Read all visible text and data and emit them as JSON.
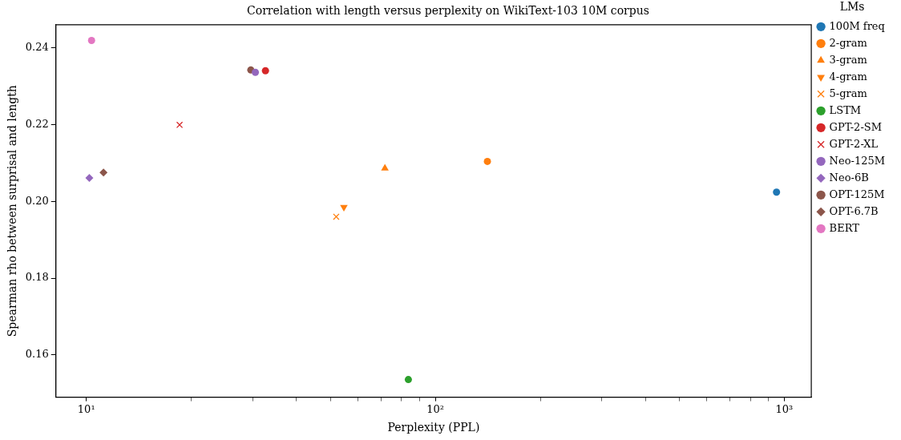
{
  "chart_data": {
    "type": "scatter",
    "title": "Correlation with length versus perplexity on WikiText-103 10M corpus",
    "xlabel": "Perplexity (PPL)",
    "ylabel": "Spearman rho between surprisal and length",
    "legend_title": "LMs",
    "legend": "top right",
    "grid": false,
    "log": "x",
    "xlim": [
      8.18,
      1195
    ],
    "xticks": [
      {
        "value": 10,
        "label": "10¹"
      },
      {
        "value": 20,
        "label": null
      },
      {
        "value": 30,
        "label": null
      },
      {
        "value": 40,
        "label": null
      },
      {
        "value": 50,
        "label": null
      },
      {
        "value": 60,
        "label": null
      },
      {
        "value": 70,
        "label": null
      },
      {
        "value": 80,
        "label": null
      },
      {
        "value": 90,
        "label": null
      },
      {
        "value": 100,
        "label": "10²"
      },
      {
        "value": 200,
        "label": null
      },
      {
        "value": 300,
        "label": null
      },
      {
        "value": 400,
        "label": null
      },
      {
        "value": 500,
        "label": null
      },
      {
        "value": 600,
        "label": null
      },
      {
        "value": 700,
        "label": null
      },
      {
        "value": 800,
        "label": null
      },
      {
        "value": 900,
        "label": null
      },
      {
        "value": 1000,
        "label": "10³"
      }
    ],
    "ylim": [
      0.149,
      0.246
    ],
    "yticks": [
      0.16,
      0.18,
      {
        "value": 0.2,
        "label": "0.20"
      },
      0.22,
      0.24
    ],
    "series": [
      {
        "name": "100M freq",
        "color": "#1f77b4",
        "marker": "circle",
        "x": [
          950
        ],
        "values": [
          0.2024
        ]
      },
      {
        "name": "2-gram",
        "color": "#ff7f0e",
        "marker": "circle",
        "x": [
          141
        ],
        "values": [
          0.2104
        ]
      },
      {
        "name": "3-gram",
        "color": "#ff7f0e",
        "marker": "triangle",
        "x": [
          71.7
        ],
        "values": [
          0.2086
        ]
      },
      {
        "name": "4-gram",
        "color": "#ff7f0e",
        "marker": "triangle_down",
        "x": [
          54.7
        ],
        "values": [
          0.1985
        ]
      },
      {
        "name": "5-gram",
        "color": "#ff7f0e",
        "marker": "cross",
        "x": [
          52
        ],
        "values": [
          0.196
        ]
      },
      {
        "name": "LSTM",
        "color": "#2ca02c",
        "marker": "circle",
        "x": [
          83.7
        ],
        "values": [
          0.1536
        ]
      },
      {
        "name": "GPT-2-SM",
        "color": "#d62728",
        "marker": "circle",
        "x": [
          32.6
        ],
        "values": [
          0.234
        ]
      },
      {
        "name": "GPT-2-XL",
        "color": "#d62728",
        "marker": "cross",
        "x": [
          18.5
        ],
        "values": [
          0.2199
        ]
      },
      {
        "name": "Neo-125M",
        "color": "#9467bd",
        "marker": "circle",
        "x": [
          30.5
        ],
        "values": [
          0.2336
        ]
      },
      {
        "name": "Neo-6B",
        "color": "#9467bd",
        "marker": "diamond",
        "x": [
          10.2
        ],
        "values": [
          0.2061
        ]
      },
      {
        "name": "OPT-125M",
        "color": "#8c564b",
        "marker": "circle",
        "x": [
          29.6
        ],
        "values": [
          0.2342
        ]
      },
      {
        "name": "OPT-6.7B",
        "color": "#8c564b",
        "marker": "diamond",
        "x": [
          11.2
        ],
        "values": [
          0.2075
        ]
      },
      {
        "name": "BERT",
        "color": "#e377c2",
        "marker": "circle",
        "x": [
          10.35
        ],
        "values": [
          0.2419
        ]
      }
    ]
  }
}
